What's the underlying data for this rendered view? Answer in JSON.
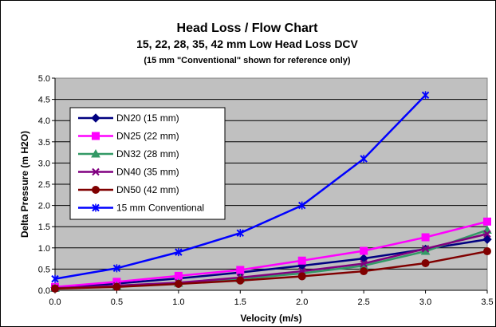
{
  "chart_data": {
    "type": "line",
    "title": "Head Loss / Flow Chart",
    "subtitle": "15, 22, 28, 35, 42 mm Low Head Loss DCV",
    "note": "(15 mm \"Conventional\" shown for reference only)",
    "xlabel": "Velocity (m/s)",
    "ylabel": "Delta Pressure (m H2O)",
    "xlim": [
      0,
      3.5
    ],
    "ylim": [
      0,
      5
    ],
    "x_ticks": [
      "0.0",
      "0.5",
      "1.0",
      "1.5",
      "2.0",
      "2.5",
      "3.0",
      "3.5"
    ],
    "y_ticks": [
      "0.0",
      "0.5",
      "1.0",
      "1.5",
      "2.0",
      "2.5",
      "3.0",
      "3.5",
      "4.0",
      "4.5",
      "5.0"
    ],
    "x_tick_values": [
      0,
      0.5,
      1,
      1.5,
      2,
      2.5,
      3,
      3.5
    ],
    "y_tick_values": [
      0,
      0.5,
      1,
      1.5,
      2,
      2.5,
      3,
      3.5,
      4,
      4.5,
      5
    ],
    "grid": true,
    "plot_background": "#c0c0c0",
    "legend_position": "upper-left",
    "series": [
      {
        "name": "DN20 (15 mm)",
        "color": "#000080",
        "marker": "diamond",
        "x": [
          0,
          0.5,
          1,
          1.5,
          2,
          2.5,
          3,
          3.5
        ],
        "y": [
          0.07,
          0.16,
          0.28,
          0.42,
          0.58,
          0.75,
          0.97,
          1.2
        ]
      },
      {
        "name": "DN25 (22 mm)",
        "color": "#ff00ff",
        "marker": "square",
        "x": [
          0,
          0.5,
          1,
          1.5,
          2,
          2.5,
          3,
          3.5
        ],
        "y": [
          0.08,
          0.2,
          0.34,
          0.48,
          0.7,
          0.93,
          1.25,
          1.62
        ]
      },
      {
        "name": "DN32 (28 mm)",
        "color": "#339966",
        "marker": "triangle",
        "x": [
          0,
          0.5,
          1,
          1.5,
          2,
          2.5,
          3,
          3.5
        ],
        "y": [
          0.05,
          0.1,
          0.17,
          0.27,
          0.4,
          0.58,
          0.92,
          1.42
        ]
      },
      {
        "name": "DN40 (35 mm)",
        "color": "#800080",
        "marker": "x",
        "x": [
          0,
          0.5,
          1,
          1.5,
          2,
          2.5,
          3,
          3.5
        ],
        "y": [
          0.05,
          0.11,
          0.18,
          0.3,
          0.45,
          0.63,
          0.98,
          1.33
        ]
      },
      {
        "name": "DN50 (42 mm)",
        "color": "#800000",
        "marker": "circle",
        "x": [
          0,
          0.5,
          1,
          1.5,
          2,
          2.5,
          3,
          3.5
        ],
        "y": [
          0.04,
          0.08,
          0.15,
          0.23,
          0.33,
          0.45,
          0.64,
          0.92
        ]
      },
      {
        "name": "15 mm Conventional",
        "color": "#0000ff",
        "marker": "star",
        "x": [
          0,
          0.5,
          1,
          1.5,
          2,
          2.5,
          3
        ],
        "y": [
          0.27,
          0.52,
          0.9,
          1.35,
          2.0,
          3.1,
          4.6
        ]
      }
    ]
  }
}
